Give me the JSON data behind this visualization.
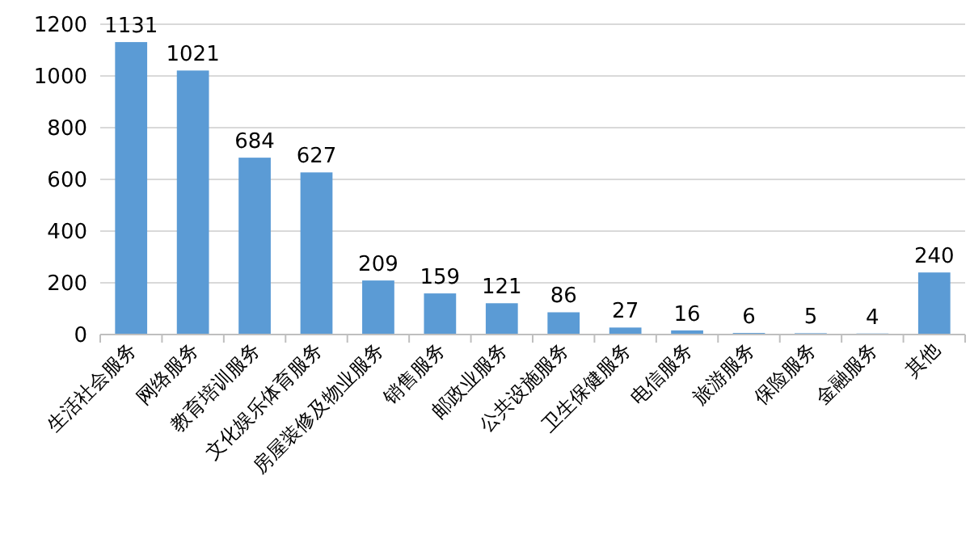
{
  "chart_data": {
    "type": "bar",
    "categories": [
      "生活社会服务",
      "网络服务",
      "教育培训服务",
      "文化娱乐体育服务",
      "房屋装修及物业服务",
      "销售服务",
      "邮政业服务",
      "公共设施服务",
      "卫生保健服务",
      "电信服务",
      "旅游服务",
      "保险服务",
      "金融服务",
      "其他"
    ],
    "values": [
      1131,
      1021,
      684,
      627,
      209,
      159,
      121,
      86,
      27,
      16,
      6,
      5,
      4,
      240
    ],
    "color": "#5b9bd5",
    "ylim": [
      0,
      1200
    ],
    "yticks": [
      0,
      200,
      400,
      600,
      800,
      1000,
      1200
    ],
    "grid": "y",
    "data_labels": true
  }
}
